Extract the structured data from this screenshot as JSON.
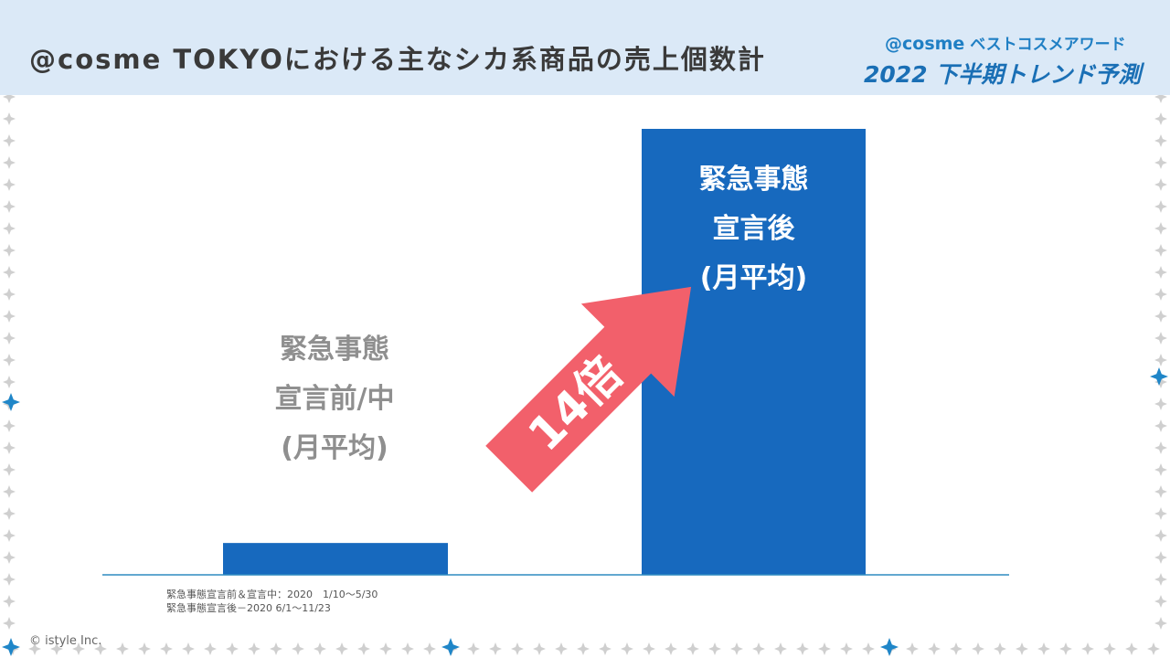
{
  "header": {
    "title": "@cosme TOKYOにおける主なシカ系商品の売上個数計",
    "brand": "@cosme",
    "brand_award": "ベストコスメアワード",
    "subtitle": "2022 下半期トレンド予測"
  },
  "colors": {
    "header_bg": "#dbe9f7",
    "bar": "#1769be",
    "arrow": "#f2606b",
    "baseline": "#2f8bc0",
    "sparkle": "#cfcfcf",
    "sparkle_accent": "#1f86c8"
  },
  "chart_data": {
    "type": "bar",
    "categories": [
      "緊急事態宣言前/中（月平均）",
      "緊急事態宣言後（月平均）"
    ],
    "values": [
      1,
      14
    ],
    "ylim": [
      0,
      14
    ],
    "grid": false,
    "annotation": "14倍",
    "bar_labels": [
      {
        "lines": [
          "緊急事態",
          "宣言前/中",
          "(月平均)"
        ]
      },
      {
        "lines": [
          "緊急事態",
          "宣言後",
          "(月平均)"
        ]
      }
    ]
  },
  "footnotes": [
    "緊急事態宣言前＆宣言中：2020　1/10〜5/30",
    "緊急事態宣言後－2020 6/1〜11/23"
  ],
  "copyright": "© istyle Inc."
}
